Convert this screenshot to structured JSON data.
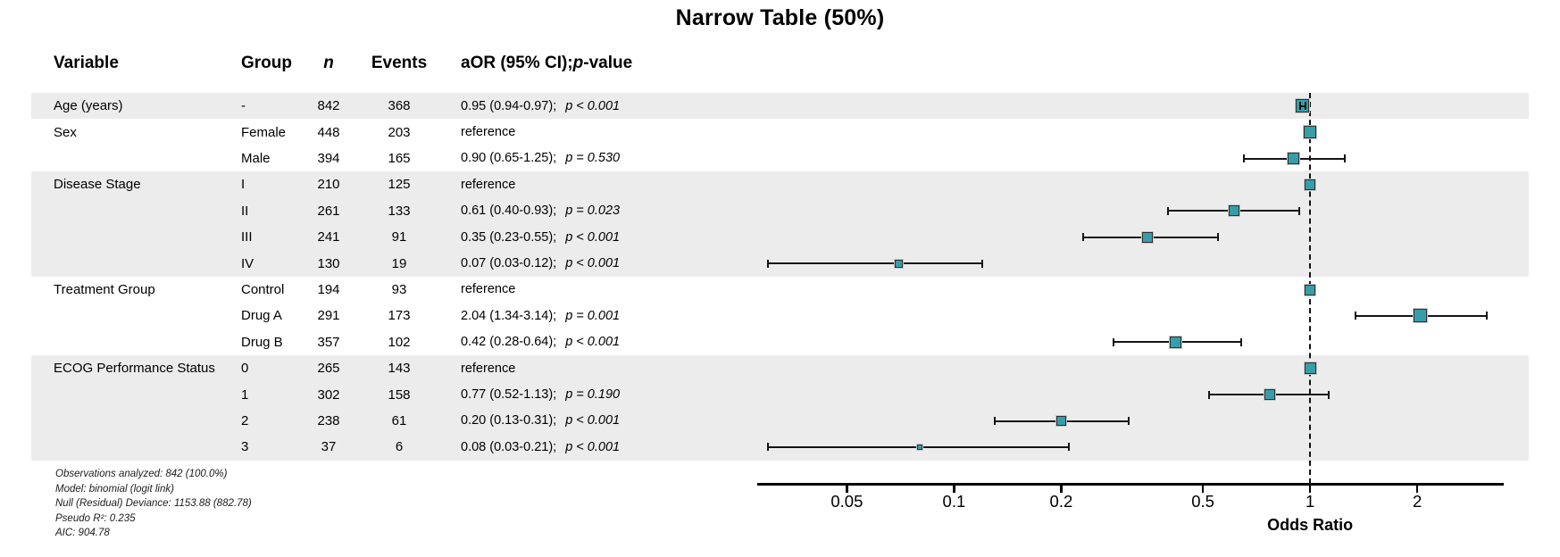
{
  "title": "Narrow Table (50%)",
  "header": {
    "variable": "Variable",
    "group": "Group",
    "n": "n",
    "events": "Events",
    "aor_prefix": "aOR (95% CI); ",
    "aor_p": "p",
    "aor_suffix": "-value"
  },
  "colors": {
    "marker_fill": "#369EAA",
    "marker_border": "#2F2F2F",
    "band": "#ECECEC",
    "axis": "#000000"
  },
  "footnotes": [
    "Observations analyzed: 842 (100.0%)",
    "Model: binomial (logit link)",
    "Null (Residual) Deviance: 1153.88 (882.78)",
    "Pseudo R²: 0.235",
    "AIC: 904.78"
  ],
  "chart_data": {
    "type": "scatter",
    "subtype": "forest-plot",
    "title": "Narrow Table (50%)",
    "xlabel": "Odds Ratio",
    "x_scale": "log",
    "xlim": [
      0.028,
      3.5
    ],
    "reference_line": 1,
    "x_ticks": [
      {
        "value": 0.05,
        "label": "0.05"
      },
      {
        "value": 0.1,
        "label": "0.1"
      },
      {
        "value": 0.2,
        "label": "0.2"
      },
      {
        "value": 0.5,
        "label": "0.5"
      },
      {
        "value": 1,
        "label": "1"
      },
      {
        "value": 2,
        "label": "2"
      }
    ],
    "groups": [
      {
        "variable": "Age (years)",
        "shaded": true,
        "rows": [
          {
            "group": "-",
            "n": "842",
            "events": "368",
            "estimate_text": "0.95 (0.94-0.97);",
            "p_text": "p < 0.001",
            "or": 0.95,
            "lo": 0.94,
            "hi": 0.97,
            "reference": false,
            "marker_size": 15
          }
        ]
      },
      {
        "variable": "Sex",
        "shaded": false,
        "rows": [
          {
            "group": "Female",
            "n": "448",
            "events": "203",
            "estimate_text": "reference",
            "p_text": "",
            "or": 1,
            "lo": null,
            "hi": null,
            "reference": true,
            "marker_size": 14
          },
          {
            "group": "Male",
            "n": "394",
            "events": "165",
            "estimate_text": "0.90 (0.65-1.25);",
            "p_text": "p = 0.530",
            "or": 0.9,
            "lo": 0.65,
            "hi": 1.25,
            "reference": false,
            "marker_size": 13
          }
        ]
      },
      {
        "variable": "Disease Stage",
        "shaded": true,
        "rows": [
          {
            "group": "I",
            "n": "210",
            "events": "125",
            "estimate_text": "reference",
            "p_text": "",
            "or": 1,
            "lo": null,
            "hi": null,
            "reference": true,
            "marker_size": 12
          },
          {
            "group": "II",
            "n": "261",
            "events": "133",
            "estimate_text": "0.61 (0.40-0.93);",
            "p_text": "p = 0.023",
            "or": 0.61,
            "lo": 0.4,
            "hi": 0.93,
            "reference": false,
            "marker_size": 12
          },
          {
            "group": "III",
            "n": "241",
            "events": "91",
            "estimate_text": "0.35 (0.23-0.55);",
            "p_text": "p < 0.001",
            "or": 0.35,
            "lo": 0.23,
            "hi": 0.55,
            "reference": false,
            "marker_size": 12
          },
          {
            "group": "IV",
            "n": "130",
            "events": "19",
            "estimate_text": "0.07 (0.03-0.12);",
            "p_text": "p < 0.001",
            "or": 0.07,
            "lo": 0.03,
            "hi": 0.12,
            "reference": false,
            "marker_size": 9
          }
        ]
      },
      {
        "variable": "Treatment Group",
        "shaded": false,
        "rows": [
          {
            "group": "Control",
            "n": "194",
            "events": "93",
            "estimate_text": "reference",
            "p_text": "",
            "or": 1,
            "lo": null,
            "hi": null,
            "reference": true,
            "marker_size": 12
          },
          {
            "group": "Drug A",
            "n": "291",
            "events": "173",
            "estimate_text": "2.04 (1.34-3.14);",
            "p_text": "p = 0.001",
            "or": 2.04,
            "lo": 1.34,
            "hi": 3.14,
            "reference": false,
            "marker_size": 15
          },
          {
            "group": "Drug B",
            "n": "357",
            "events": "102",
            "estimate_text": "0.42 (0.28-0.64);",
            "p_text": "p < 0.001",
            "or": 0.42,
            "lo": 0.28,
            "hi": 0.64,
            "reference": false,
            "marker_size": 13
          }
        ]
      },
      {
        "variable": "ECOG Performance Status",
        "shaded": true,
        "rows": [
          {
            "group": "0",
            "n": "265",
            "events": "143",
            "estimate_text": "reference",
            "p_text": "",
            "or": 1,
            "lo": null,
            "hi": null,
            "reference": true,
            "marker_size": 13
          },
          {
            "group": "1",
            "n": "302",
            "events": "158",
            "estimate_text": "0.77 (0.52-1.13);",
            "p_text": "p = 0.190",
            "or": 0.77,
            "lo": 0.52,
            "hi": 1.13,
            "reference": false,
            "marker_size": 12
          },
          {
            "group": "2",
            "n": "238",
            "events": "61",
            "estimate_text": "0.20 (0.13-0.31);",
            "p_text": "p < 0.001",
            "or": 0.2,
            "lo": 0.13,
            "hi": 0.31,
            "reference": false,
            "marker_size": 11
          },
          {
            "group": "3",
            "n": "37",
            "events": "6",
            "estimate_text": "0.08 (0.03-0.21);",
            "p_text": "p < 0.001",
            "or": 0.08,
            "lo": 0.03,
            "hi": 0.21,
            "reference": false,
            "marker_size": 6
          }
        ]
      }
    ]
  }
}
